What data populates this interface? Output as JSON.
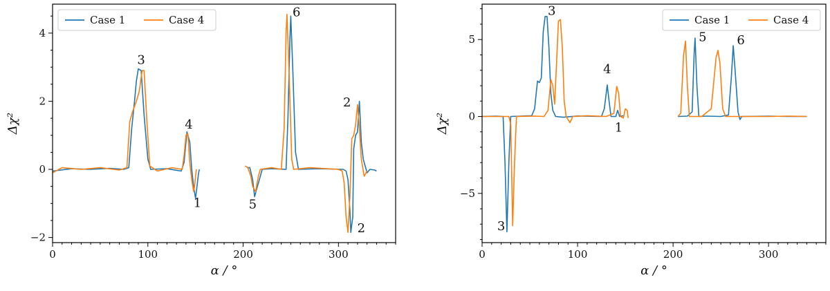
{
  "chart_data": [
    {
      "type": "line",
      "xlabel": "α / °",
      "ylabel": "Δχ²",
      "xlim": [
        0,
        360
      ],
      "ylim": [
        -2.15,
        4.85
      ],
      "xticks": [
        0,
        100,
        200,
        300
      ],
      "yticks": [
        -2,
        0,
        2,
        4
      ],
      "legend_position": "top-left",
      "grid": false,
      "series": [
        {
          "name": "Case 1",
          "color": "#1f77b4",
          "segments": [
            [
              [
                0,
                -0.05
              ],
              [
                20,
                0.02
              ],
              [
                40,
                0.0
              ],
              [
                60,
                0.03
              ],
              [
                75,
                0.0
              ],
              [
                80,
                0.05
              ],
              [
                83,
                1.2
              ],
              [
                86,
                2.0
              ],
              [
                88,
                2.6
              ],
              [
                90,
                2.95
              ],
              [
                93,
                2.9
              ],
              [
                96,
                1.6
              ],
              [
                100,
                0.3
              ],
              [
                103,
                0.0
              ],
              [
                120,
                0.02
              ],
              [
                135,
                -0.05
              ],
              [
                138,
                0.2
              ],
              [
                141,
                1.1
              ],
              [
                144,
                0.8
              ],
              [
                146,
                0.0
              ],
              [
                148,
                -0.5
              ],
              [
                150,
                -0.85
              ],
              [
                152,
                -0.4
              ],
              [
                153,
                -0.15
              ],
              [
                154,
                0.0
              ]
            ],
            [
              [
                204,
                0.05
              ],
              [
                207,
                0.05
              ],
              [
                210,
                -0.3
              ],
              [
                212,
                -0.8
              ],
              [
                214,
                -0.6
              ],
              [
                217,
                -0.3
              ],
              [
                220,
                0.0
              ],
              [
                230,
                0.02
              ],
              [
                245,
                0.0
              ],
              [
                247,
                1.5
              ],
              [
                249,
                3.8
              ],
              [
                250,
                4.5
              ],
              [
                252,
                3.0
              ],
              [
                255,
                0.5
              ],
              [
                258,
                0.0
              ],
              [
                280,
                0.02
              ],
              [
                305,
                0.0
              ],
              [
                308,
                -0.05
              ],
              [
                310,
                -0.3
              ],
              [
                312,
                -1.2
              ],
              [
                313,
                -1.85
              ],
              [
                315,
                -1.4
              ],
              [
                316,
                0.6
              ],
              [
                318,
                1.0
              ],
              [
                320,
                1.1
              ],
              [
                322,
                2.0
              ],
              [
                324,
                0.8
              ],
              [
                326,
                0.3
              ],
              [
                330,
                -0.1
              ],
              [
                333,
                0.0
              ],
              [
                338,
                -0.02
              ],
              [
                340,
                -0.05
              ]
            ]
          ]
        },
        {
          "name": "Case 4",
          "color": "#ff7f0e",
          "segments": [
            [
              [
                0,
                -0.1
              ],
              [
                10,
                0.05
              ],
              [
                30,
                0.0
              ],
              [
                50,
                0.05
              ],
              [
                70,
                -0.02
              ],
              [
                78,
                0.05
              ],
              [
                81,
                1.4
              ],
              [
                84,
                1.7
              ],
              [
                88,
                2.0
              ],
              [
                91,
                2.3
              ],
              [
                94,
                2.9
              ],
              [
                96,
                2.9
              ],
              [
                99,
                1.4
              ],
              [
                102,
                0.1
              ],
              [
                110,
                -0.05
              ],
              [
                125,
                0.05
              ],
              [
                136,
                0.0
              ],
              [
                138,
                0.4
              ],
              [
                140,
                1.0
              ],
              [
                142,
                1.05
              ],
              [
                144,
                0.2
              ],
              [
                146,
                -0.3
              ],
              [
                148,
                -0.65
              ],
              [
                149,
                -0.5
              ],
              [
                150,
                -0.2
              ],
              [
                151,
                0.0
              ]
            ],
            [
              [
                202,
                0.1
              ],
              [
                205,
                0.05
              ],
              [
                208,
                -0.2
              ],
              [
                210,
                -0.5
              ],
              [
                213,
                -0.65
              ],
              [
                216,
                -0.2
              ],
              [
                218,
                0.0
              ],
              [
                230,
                0.05
              ],
              [
                240,
                0.0
              ],
              [
                243,
                1.2
              ],
              [
                245,
                4.0
              ],
              [
                246,
                4.55
              ],
              [
                248,
                3.0
              ],
              [
                251,
                0.3
              ],
              [
                253,
                0.0
              ],
              [
                270,
                0.05
              ],
              [
                300,
                0.0
              ],
              [
                304,
                -0.05
              ],
              [
                306,
                -0.4
              ],
              [
                308,
                -1.4
              ],
              [
                310,
                -1.85
              ],
              [
                312,
                -0.8
              ],
              [
                314,
                0.9
              ],
              [
                316,
                1.0
              ],
              [
                318,
                1.3
              ],
              [
                320,
                1.9
              ],
              [
                322,
                1.2
              ],
              [
                324,
                0.3
              ],
              [
                327,
                -0.2
              ],
              [
                330,
                -0.05
              ]
            ]
          ]
        }
      ],
      "annotations": [
        {
          "text": "3",
          "x": 93,
          "y": 3.1
        },
        {
          "text": "4",
          "x": 143,
          "y": 1.2
        },
        {
          "text": "1",
          "x": 152,
          "y": -1.1
        },
        {
          "text": "5",
          "x": 210,
          "y": -1.15
        },
        {
          "text": "6",
          "x": 256,
          "y": 4.5
        },
        {
          "text": "2",
          "x": 309,
          "y": 1.85
        },
        {
          "text": "2",
          "x": 324,
          "y": -1.85
        }
      ]
    },
    {
      "type": "line",
      "xlabel": "α / °",
      "ylabel": "Δχ²",
      "xlim": [
        0,
        360
      ],
      "ylim": [
        -8.2,
        7.3
      ],
      "xticks": [
        0,
        100,
        200,
        300
      ],
      "yticks": [
        -5,
        0,
        5
      ],
      "legend_position": "top-right",
      "grid": false,
      "series": [
        {
          "name": "Case 1",
          "color": "#1f77b4",
          "segments": [
            [
              [
                0,
                0.0
              ],
              [
                15,
                0.02
              ],
              [
                22,
                0.0
              ],
              [
                24,
                -3.0
              ],
              [
                26,
                -7.5
              ],
              [
                28,
                -3.0
              ],
              [
                30,
                0.0
              ],
              [
                40,
                0.02
              ],
              [
                52,
                0.05
              ],
              [
                55,
                0.5
              ],
              [
                58,
                2.3
              ],
              [
                60,
                2.2
              ],
              [
                62,
                2.5
              ],
              [
                64,
                5.5
              ],
              [
                66,
                6.5
              ],
              [
                68,
                6.5
              ],
              [
                70,
                4.5
              ],
              [
                72,
                1.5
              ],
              [
                74,
                0.4
              ],
              [
                77,
                0.0
              ],
              [
                85,
                -0.05
              ],
              [
                100,
                0.03
              ],
              [
                125,
                0.0
              ],
              [
                128,
                0.5
              ],
              [
                131,
                2.05
              ],
              [
                133,
                1.0
              ],
              [
                135,
                0.0
              ],
              [
                140,
                0.0
              ],
              [
                142,
                0.4
              ],
              [
                144,
                0.0
              ],
              [
                148,
                0.05
              ]
            ],
            [
              [
                205,
                0.0
              ],
              [
                215,
                0.02
              ],
              [
                220,
                0.3
              ],
              [
                222,
                4.0
              ],
              [
                223,
                5.1
              ],
              [
                225,
                2.0
              ],
              [
                227,
                0.0
              ],
              [
                235,
                0.02
              ],
              [
                250,
                0.0
              ],
              [
                258,
                0.1
              ],
              [
                261,
                2.5
              ],
              [
                263,
                4.6
              ],
              [
                265,
                3.0
              ],
              [
                268,
                0.3
              ],
              [
                270,
                -0.2
              ],
              [
                272,
                0.0
              ],
              [
                300,
                0.02
              ],
              [
                320,
                0.0
              ],
              [
                340,
                0.0
              ]
            ]
          ]
        },
        {
          "name": "Case 4",
          "color": "#ff7f0e",
          "segments": [
            [
              [
                0,
                0.0
              ],
              [
                20,
                0.0
              ],
              [
                28,
                0.0
              ],
              [
                30,
                -0.5
              ],
              [
                32,
                -7.1
              ],
              [
                34,
                -3.0
              ],
              [
                36,
                0.0
              ],
              [
                55,
                0.02
              ],
              [
                65,
                0.0
              ],
              [
                69,
                0.4
              ],
              [
                72,
                2.4
              ],
              [
                74,
                2.0
              ],
              [
                76,
                0.8
              ],
              [
                78,
                3.5
              ],
              [
                80,
                6.2
              ],
              [
                82,
                6.3
              ],
              [
                84,
                4.5
              ],
              [
                86,
                1.0
              ],
              [
                88,
                0.0
              ],
              [
                92,
                -0.4
              ],
              [
                95,
                0.0
              ],
              [
                110,
                0.05
              ],
              [
                130,
                0.0
              ],
              [
                138,
                0.2
              ],
              [
                141,
                1.95
              ],
              [
                143,
                1.5
              ],
              [
                145,
                0.0
              ],
              [
                148,
                -0.1
              ],
              [
                150,
                0.5
              ],
              [
                152,
                0.4
              ],
              [
                153,
                -0.1
              ]
            ],
            [
              [
                205,
                0.0
              ],
              [
                208,
                0.2
              ],
              [
                211,
                4.0
              ],
              [
                213,
                4.9
              ],
              [
                215,
                2.0
              ],
              [
                217,
                0.0
              ],
              [
                230,
                0.0
              ],
              [
                240,
                0.5
              ],
              [
                245,
                3.8
              ],
              [
                247,
                4.3
              ],
              [
                249,
                3.5
              ],
              [
                252,
                0.5
              ],
              [
                255,
                0.0
              ],
              [
                300,
                0.0
              ],
              [
                320,
                0.02
              ],
              [
                340,
                0.0
              ]
            ]
          ]
        }
      ],
      "annotations": [
        {
          "text": "3",
          "x": 20,
          "y": -7.4
        },
        {
          "text": "3",
          "x": 73,
          "y": 6.6
        },
        {
          "text": "4",
          "x": 131,
          "y": 2.8
        },
        {
          "text": "1",
          "x": 143,
          "y": -1.0
        },
        {
          "text": "5",
          "x": 231,
          "y": 4.9
        },
        {
          "text": "6",
          "x": 271,
          "y": 4.7
        }
      ]
    }
  ]
}
